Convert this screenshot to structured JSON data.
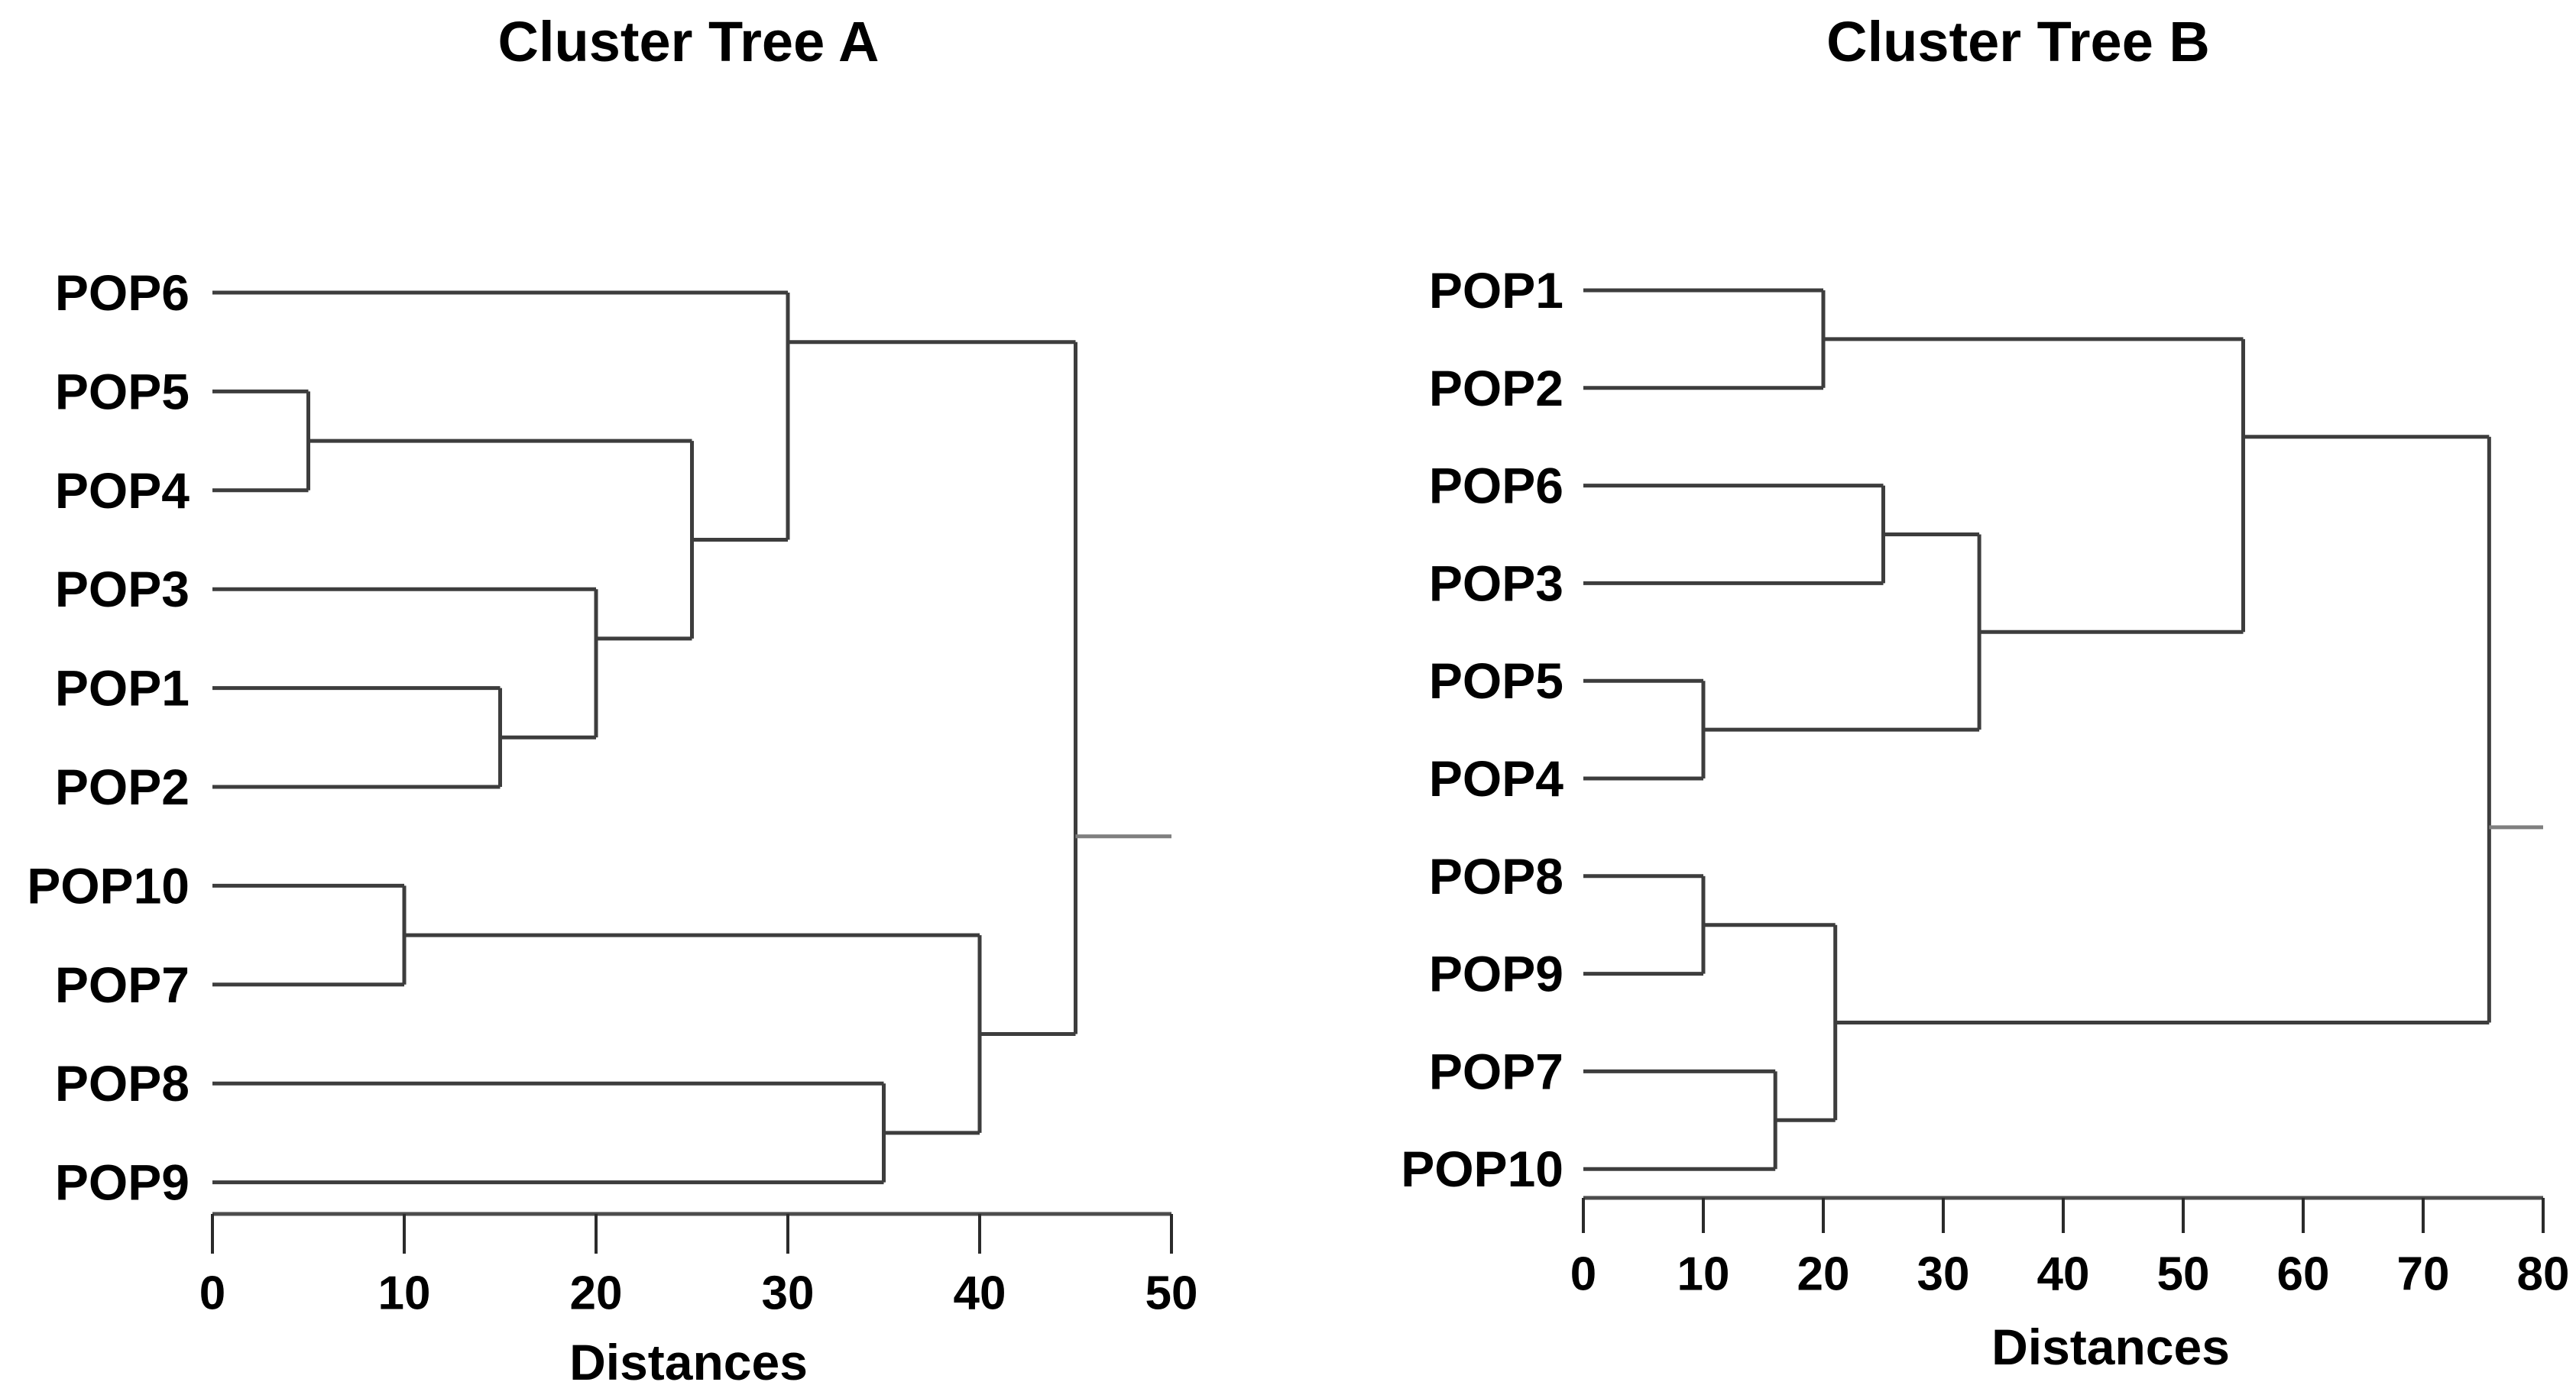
{
  "figure": {
    "background": "#ffffff",
    "colors": {
      "tree_line": "#3d3d3d",
      "root_stub_line": "#7f7f7f",
      "axis_line": "#4c4c4c",
      "tick_mark": "#2b2b2b",
      "text": "#000000"
    }
  },
  "chart_data": [
    {
      "type": "dendrogram",
      "title": "Cluster Tree A",
      "xlabel": "Distances",
      "orientation": "horizontal-left-labels",
      "axis": {
        "min": 0,
        "max": 50,
        "ticks": [
          0,
          10,
          20,
          30,
          40,
          50
        ],
        "position": "bottom"
      },
      "grid": false,
      "legend": false,
      "leaves_top_to_bottom": [
        "POP6",
        "POP5",
        "POP4",
        "POP3",
        "POP1",
        "POP2",
        "POP10",
        "POP7",
        "POP8",
        "POP9"
      ],
      "merges": [
        {
          "join": [
            "POP5",
            "POP4"
          ],
          "distance": 5
        },
        {
          "join": [
            "POP10",
            "POP7"
          ],
          "distance": 10
        },
        {
          "join": [
            "POP1",
            "POP2"
          ],
          "distance": 15
        },
        {
          "join": [
            "POP3",
            "POP1+POP2"
          ],
          "distance": 20
        },
        {
          "join": [
            "POP5+POP4",
            "POP3+POP1+POP2"
          ],
          "distance": 25
        },
        {
          "join": [
            "POP6",
            "POP5+POP4+POP3+POP1+POP2"
          ],
          "distance": 30
        },
        {
          "join": [
            "POP8",
            "POP9"
          ],
          "distance": 35
        },
        {
          "join": [
            "POP10+POP7",
            "POP8+POP9"
          ],
          "distance": 40
        },
        {
          "join": [
            "POP6+POP5+POP4+POP3+POP1+POP2",
            "POP10+POP7+POP8+POP9"
          ],
          "distance": 45
        }
      ],
      "root_line_extends_to": 50,
      "tree": {
        "d": 45,
        "c": [
          {
            "d": 30,
            "c": [
              {
                "leaf": "POP6"
              },
              {
                "d": 25,
                "c": [
                  {
                    "d": 5,
                    "c": [
                      {
                        "leaf": "POP5"
                      },
                      {
                        "leaf": "POP4"
                      }
                    ]
                  },
                  {
                    "d": 20,
                    "c": [
                      {
                        "leaf": "POP3"
                      },
                      {
                        "d": 15,
                        "c": [
                          {
                            "leaf": "POP1"
                          },
                          {
                            "leaf": "POP2"
                          }
                        ]
                      }
                    ]
                  }
                ]
              }
            ]
          },
          {
            "d": 40,
            "c": [
              {
                "d": 10,
                "c": [
                  {
                    "leaf": "POP10"
                  },
                  {
                    "leaf": "POP7"
                  }
                ]
              },
              {
                "d": 35,
                "c": [
                  {
                    "leaf": "POP8"
                  },
                  {
                    "leaf": "POP9"
                  }
                ]
              }
            ]
          }
        ]
      }
    },
    {
      "type": "dendrogram",
      "title": "Cluster Tree B",
      "xlabel": "Distances",
      "orientation": "horizontal-left-labels",
      "axis": {
        "min": 0,
        "max": 80,
        "ticks": [
          0,
          10,
          20,
          30,
          40,
          50,
          60,
          70,
          80
        ],
        "position": "bottom"
      },
      "grid": false,
      "legend": false,
      "leaves_top_to_bottom": [
        "POP1",
        "POP2",
        "POP6",
        "POP3",
        "POP5",
        "POP4",
        "POP8",
        "POP9",
        "POP7",
        "POP10"
      ],
      "merges": [
        {
          "join": [
            "POP5",
            "POP4"
          ],
          "distance": 10
        },
        {
          "join": [
            "POP8",
            "POP9"
          ],
          "distance": 10
        },
        {
          "join": [
            "POP7",
            "POP10"
          ],
          "distance": 16
        },
        {
          "join": [
            "POP1",
            "POP2"
          ],
          "distance": 20
        },
        {
          "join": [
            "POP8+POP9",
            "POP7+POP10"
          ],
          "distance": 21
        },
        {
          "join": [
            "POP6",
            "POP3"
          ],
          "distance": 25
        },
        {
          "join": [
            "POP6+POP3",
            "POP5+POP4"
          ],
          "distance": 33
        },
        {
          "join": [
            "POP1+POP2",
            "POP6+POP3+POP5+POP4"
          ],
          "distance": 55
        },
        {
          "join": [
            "POP1+POP2+POP6+POP3+POP5+POP4",
            "POP8+POP9+POP7+POP10"
          ],
          "distance": 75.5
        }
      ],
      "root_line_extends_to": 80,
      "tree": {
        "d": 75.5,
        "c": [
          {
            "d": 55,
            "c": [
              {
                "d": 20,
                "c": [
                  {
                    "leaf": "POP1"
                  },
                  {
                    "leaf": "POP2"
                  }
                ]
              },
              {
                "d": 33,
                "c": [
                  {
                    "d": 25,
                    "c": [
                      {
                        "leaf": "POP6"
                      },
                      {
                        "leaf": "POP3"
                      }
                    ]
                  },
                  {
                    "d": 10,
                    "c": [
                      {
                        "leaf": "POP5"
                      },
                      {
                        "leaf": "POP4"
                      }
                    ]
                  }
                ]
              }
            ]
          },
          {
            "d": 21,
            "c": [
              {
                "d": 10,
                "c": [
                  {
                    "leaf": "POP8"
                  },
                  {
                    "leaf": "POP9"
                  }
                ]
              },
              {
                "d": 16,
                "c": [
                  {
                    "leaf": "POP7"
                  },
                  {
                    "leaf": "POP10"
                  }
                ]
              }
            ]
          }
        ]
      }
    }
  ]
}
